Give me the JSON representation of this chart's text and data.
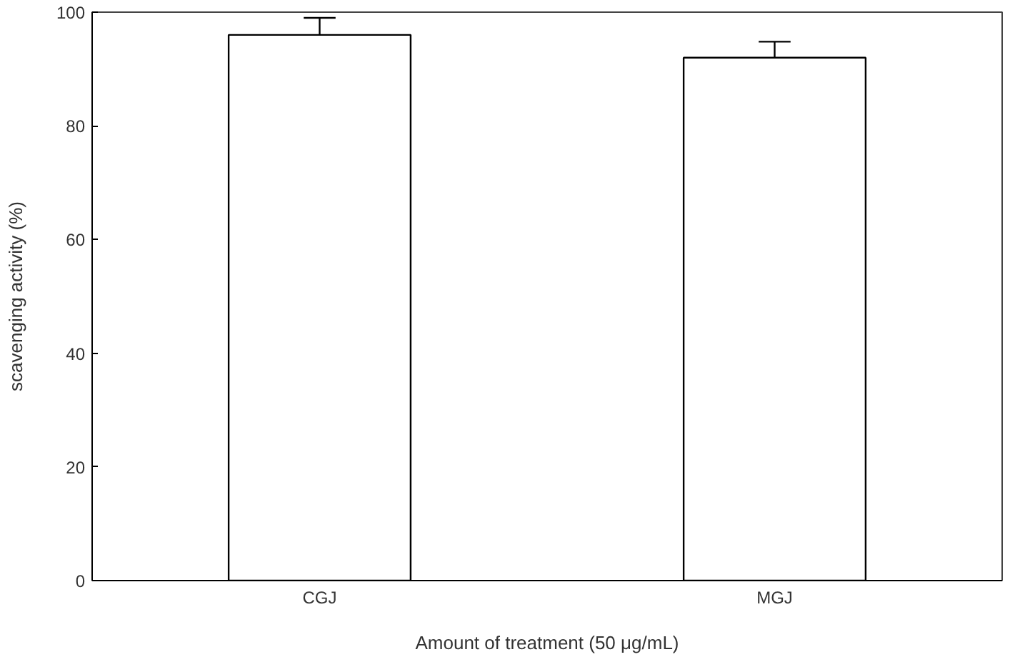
{
  "chart_data": {
    "type": "bar",
    "xlabel": "Amount of treatment (50 μg/mL)",
    "ylabel": "scavenging activity (%)",
    "categories": [
      "CGJ",
      "MGJ"
    ],
    "values": [
      96,
      92
    ],
    "errors": [
      [
        96,
        99
      ],
      [
        92,
        94.8
      ]
    ],
    "color": "#ffffff",
    "ylim": [
      0,
      100
    ],
    "yticks": [
      0,
      20,
      40,
      60,
      80,
      100
    ],
    "grid": false
  }
}
